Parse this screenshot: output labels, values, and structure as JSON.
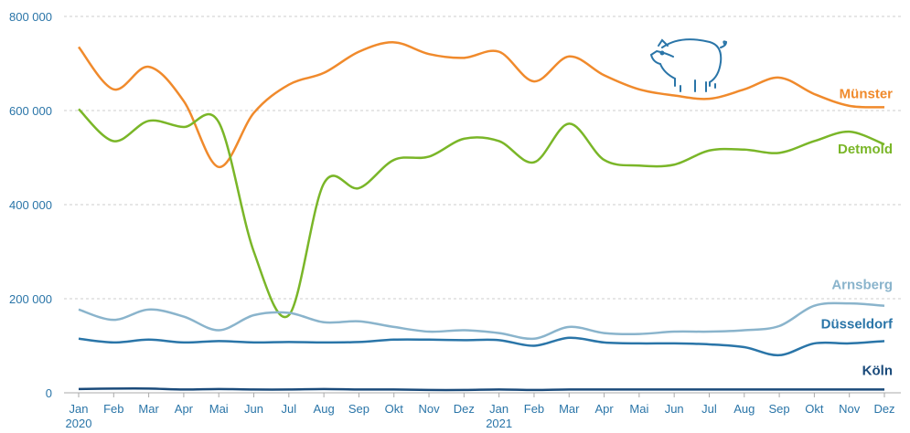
{
  "chart_data": {
    "type": "line",
    "categories": [
      "Jan",
      "Feb",
      "Mar",
      "Apr",
      "Mai",
      "Jun",
      "Jul",
      "Aug",
      "Sep",
      "Okt",
      "Nov",
      "Dez",
      "Jan",
      "Feb",
      "Mar",
      "Apr",
      "Mai",
      "Jun",
      "Jul",
      "Aug",
      "Sep",
      "Okt",
      "Nov",
      "Dez"
    ],
    "year_labels": [
      "2020",
      null,
      null,
      null,
      null,
      null,
      null,
      null,
      null,
      null,
      null,
      null,
      "2021",
      null,
      null,
      null,
      null,
      null,
      null,
      null,
      null,
      null,
      null,
      null
    ],
    "ylim": [
      0,
      800000
    ],
    "yticks": [
      0,
      {
        "value": 200000,
        "label": "200 000"
      },
      {
        "value": 400000,
        "label": "400 000"
      },
      {
        "value": 600000,
        "label": "600 000"
      },
      {
        "value": 800000,
        "label": "800 000"
      }
    ],
    "grid": true,
    "series": [
      {
        "name": "Münster",
        "color": "#f08a2c",
        "values": [
          735000,
          645000,
          693000,
          620000,
          480000,
          595000,
          655000,
          680000,
          725000,
          745000,
          720000,
          712000,
          725000,
          662000,
          715000,
          675000,
          645000,
          632000,
          625000,
          645000,
          670000,
          635000,
          610000,
          607000
        ]
      },
      {
        "name": "Detmold",
        "color": "#7ab628",
        "values": [
          603000,
          535000,
          578000,
          565000,
          575000,
          300000,
          165000,
          445000,
          435000,
          495000,
          502000,
          540000,
          535000,
          490000,
          572000,
          495000,
          483000,
          485000,
          515000,
          517000,
          510000,
          535000,
          555000,
          528000
        ]
      },
      {
        "name": "Arnsberg",
        "color": "#8ab4cc",
        "values": [
          177000,
          155000,
          177000,
          162000,
          133000,
          165000,
          170000,
          150000,
          152000,
          140000,
          130000,
          133000,
          127000,
          115000,
          140000,
          127000,
          125000,
          130000,
          130000,
          133000,
          142000,
          185000,
          190000,
          185000
        ]
      },
      {
        "name": "Düsseldorf",
        "color": "#2a75a8",
        "values": [
          115000,
          107000,
          113000,
          107000,
          110000,
          107000,
          108000,
          107000,
          108000,
          113000,
          113000,
          112000,
          112000,
          100000,
          117000,
          107000,
          105000,
          105000,
          103000,
          97000,
          80000,
          105000,
          105000,
          110000
        ]
      },
      {
        "name": "Köln",
        "color": "#1a4a7a",
        "values": [
          8000,
          9000,
          9000,
          7000,
          8000,
          7000,
          7000,
          8000,
          7000,
          7000,
          6000,
          6000,
          7000,
          6000,
          7000,
          7000,
          7000,
          7000,
          7000,
          7000,
          7000,
          7000,
          7000,
          7000
        ]
      }
    ]
  }
}
